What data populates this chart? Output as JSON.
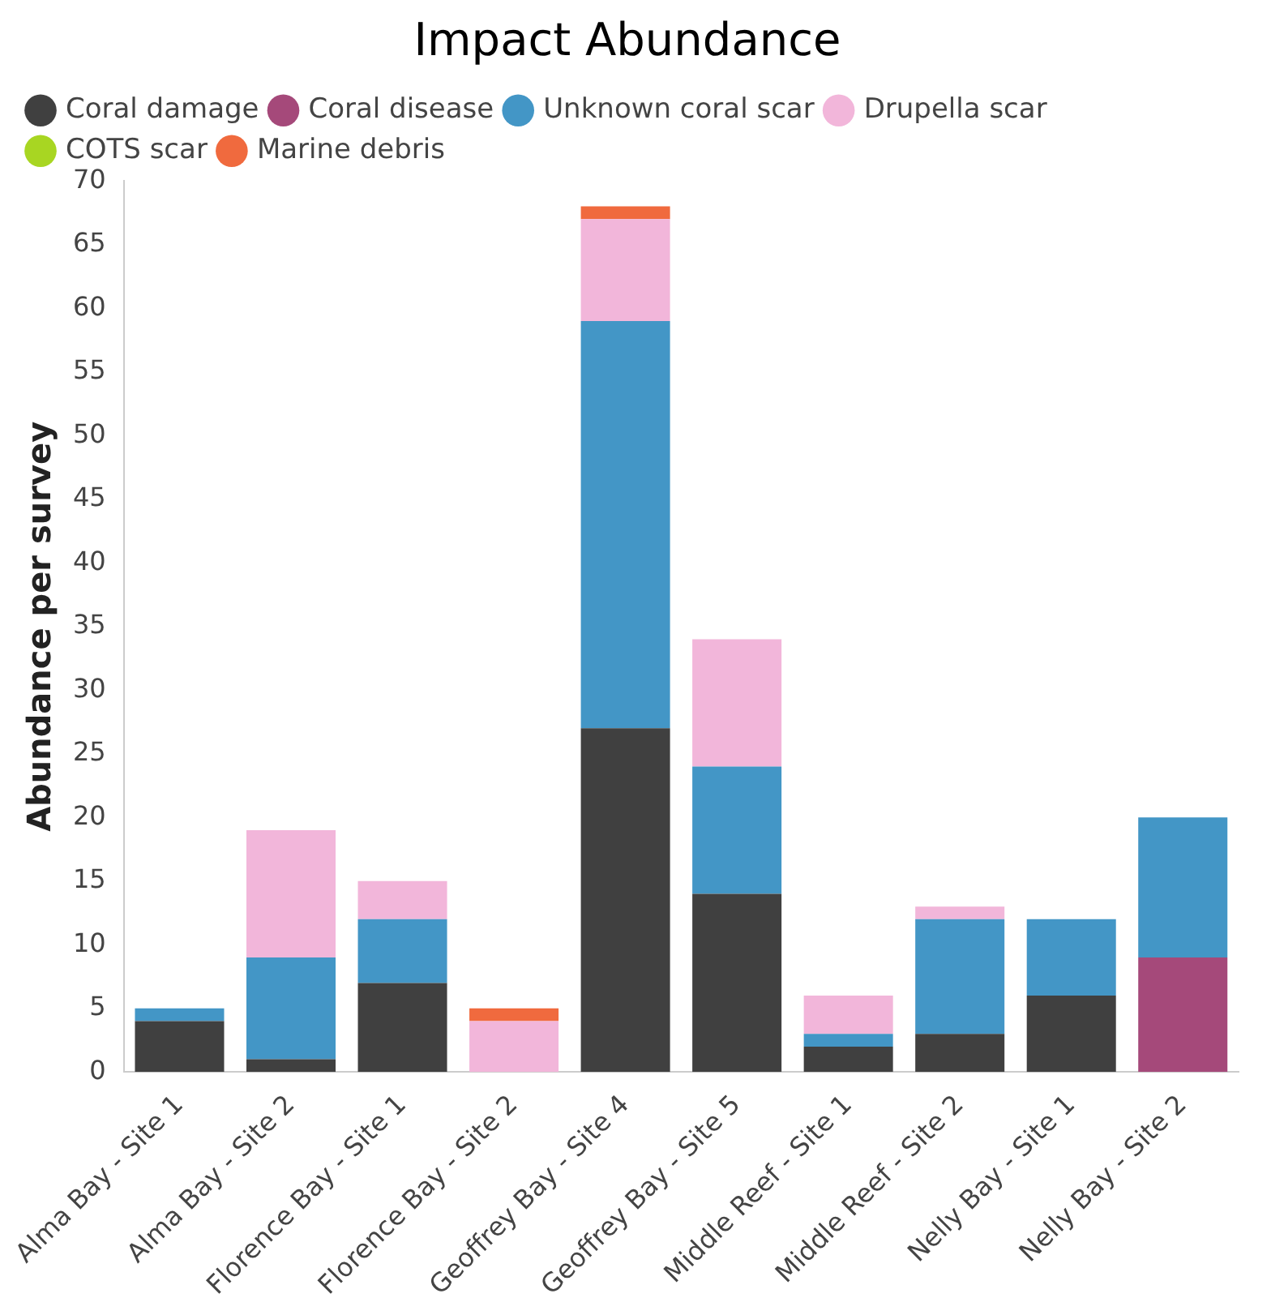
{
  "chart_data": {
    "type": "bar",
    "title": "Impact Abundance",
    "ylabel": "Abundance per survey",
    "categories": [
      "Alma Bay - Site 1",
      "Alma Bay - Site 2",
      "Florence Bay - Site 1",
      "Florence Bay - Site 2",
      "Geoffrey Bay - Site 4",
      "Geoffrey Bay - Site 5",
      "Middle Reef - Site 1",
      "Middle Reef - Site 2",
      "Nelly Bay - Site 1",
      "Nelly Bay - Site 2"
    ],
    "series": [
      {
        "name": "Coral damage",
        "color": "#404040",
        "values": [
          4,
          1,
          7,
          0,
          27,
          14,
          2,
          3,
          6,
          0
        ]
      },
      {
        "name": "Coral disease",
        "color": "#a5497a",
        "values": [
          0,
          0,
          0,
          0,
          0,
          0,
          0,
          0,
          0,
          9
        ]
      },
      {
        "name": "Unknown coral scar",
        "color": "#4396c6",
        "values": [
          1,
          8,
          5,
          0,
          32,
          10,
          1,
          9,
          6,
          11
        ]
      },
      {
        "name": "Drupella scar",
        "color": "#f2b6da",
        "values": [
          0,
          10,
          3,
          4,
          8,
          10,
          3,
          1,
          0,
          0
        ]
      },
      {
        "name": "COTS scar",
        "color": "#a8d622",
        "values": [
          0,
          0,
          0,
          0,
          0,
          0,
          0,
          0,
          0,
          0
        ]
      },
      {
        "name": "Marine debris",
        "color": "#f06a3e",
        "values": [
          0,
          0,
          0,
          1,
          1,
          0,
          0,
          0,
          0,
          0
        ]
      }
    ],
    "stacked": true,
    "ylim": [
      0,
      70
    ],
    "yticks": [
      0,
      5,
      10,
      15,
      20,
      25,
      30,
      35,
      40,
      45,
      50,
      55,
      60,
      65,
      70
    ],
    "grid": false,
    "legend": "top",
    "marker": "circle"
  }
}
